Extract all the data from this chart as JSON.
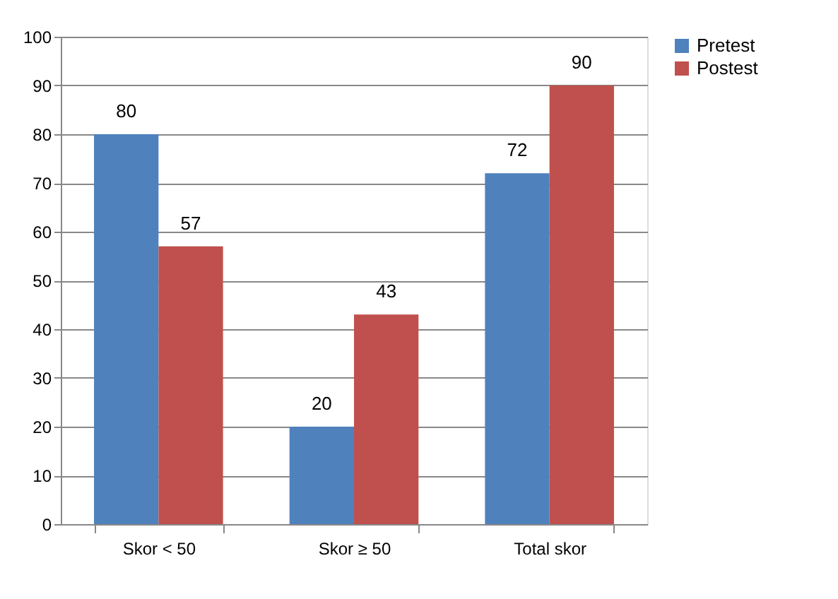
{
  "chart_data": {
    "type": "bar",
    "categories": [
      "Skor < 50",
      "Skor ≥ 50",
      "Total skor"
    ],
    "series": [
      {
        "name": "Pretest",
        "color": "#4f81bd",
        "values": [
          80,
          20,
          72
        ]
      },
      {
        "name": "Postest",
        "color": "#c0504d",
        "values": [
          57,
          43,
          90
        ]
      }
    ],
    "ylim": [
      0,
      100
    ],
    "yticks": [
      0,
      10,
      20,
      30,
      40,
      50,
      60,
      70,
      80,
      90,
      100
    ],
    "grid": "y",
    "legend": "top right",
    "data_labels": true
  }
}
